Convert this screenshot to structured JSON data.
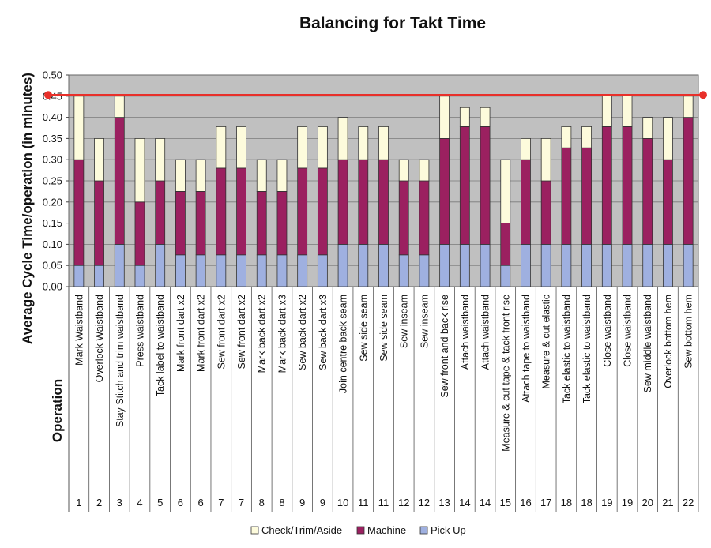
{
  "chart_data": {
    "type": "bar",
    "stacked": true,
    "title": "Balancing for Takt Time",
    "ylabel": "Average Cycle Time/operation (in minutes)",
    "xlabel": "Operation",
    "ylim": [
      0,
      0.5
    ],
    "yticks": [
      "0.00",
      "0.05",
      "0.10",
      "0.15",
      "0.20",
      "0.25",
      "0.30",
      "0.35",
      "0.40",
      "0.45",
      "0.50"
    ],
    "grid": true,
    "legend_position": "bottom",
    "takt_line": 0.453,
    "colors": {
      "plot_bg": "#c0c0c0",
      "pick_up": "#9fb0e0",
      "machine": "#9b2060",
      "check": "#fdfbdc",
      "takt": "#e8302a"
    },
    "categories": [
      "Mark Waistband",
      "Overlock Waistband",
      "Stay Stitch and trim waistband",
      "Press waistband",
      "Tack label to waistband",
      "Mark front dart x2",
      "Mark front dart x2",
      "Sew front dart x2",
      "Sew front dart x2",
      "Mark back dart x2",
      "Mark back dart x3",
      "Sew back dart x2",
      "Sew back dart x3",
      "Join centre back seam",
      "Sew side seam",
      "Sew side seam",
      "Sew inseam",
      "Sew inseam",
      "Sew front and back rise",
      "Attach waistband",
      "Attach waistband",
      "Measure & cut tape & tack front rise",
      "Attach tape to waistband",
      "Measure & cut elastic",
      "Tack elastic to waistband",
      "Tack elastic to waistband",
      "Close waistband",
      "Close waistband",
      "Sew middle waistband",
      "Overlock bottom hem",
      "Sew bottom hem"
    ],
    "operation_numbers": [
      "1",
      "2",
      "3",
      "4",
      "5",
      "6",
      "6",
      "7",
      "7",
      "8",
      "8",
      "9",
      "9",
      "10",
      "11",
      "11",
      "12",
      "12",
      "13",
      "14",
      "14",
      "15",
      "16",
      "17",
      "18",
      "18",
      "19",
      "19",
      "20",
      "21",
      "22"
    ],
    "series": [
      {
        "name": "Pick Up",
        "values": [
          0.05,
          0.05,
          0.1,
          0.05,
          0.1,
          0.075,
          0.075,
          0.075,
          0.075,
          0.075,
          0.075,
          0.075,
          0.075,
          0.1,
          0.1,
          0.1,
          0.075,
          0.075,
          0.1,
          0.1,
          0.1,
          0.05,
          0.1,
          0.1,
          0.1,
          0.1,
          0.1,
          0.1,
          0.1,
          0.1,
          0.1
        ]
      },
      {
        "name": "Machine",
        "values": [
          0.25,
          0.2,
          0.3,
          0.15,
          0.15,
          0.15,
          0.15,
          0.205,
          0.205,
          0.15,
          0.15,
          0.205,
          0.205,
          0.2,
          0.2,
          0.2,
          0.175,
          0.175,
          0.25,
          0.278,
          0.278,
          0.1,
          0.2,
          0.15,
          0.228,
          0.228,
          0.278,
          0.278,
          0.25,
          0.2,
          0.3
        ]
      },
      {
        "name": "Check/Trim/Aside",
        "values": [
          0.15,
          0.1,
          0.05,
          0.15,
          0.1,
          0.075,
          0.075,
          0.098,
          0.098,
          0.075,
          0.075,
          0.098,
          0.098,
          0.1,
          0.078,
          0.078,
          0.05,
          0.05,
          0.1,
          0.045,
          0.045,
          0.15,
          0.05,
          0.1,
          0.05,
          0.05,
          0.075,
          0.075,
          0.05,
          0.1,
          0.05
        ]
      }
    ],
    "legend": [
      "Check/Trim/Aside",
      "Machine",
      "Pick Up"
    ]
  }
}
